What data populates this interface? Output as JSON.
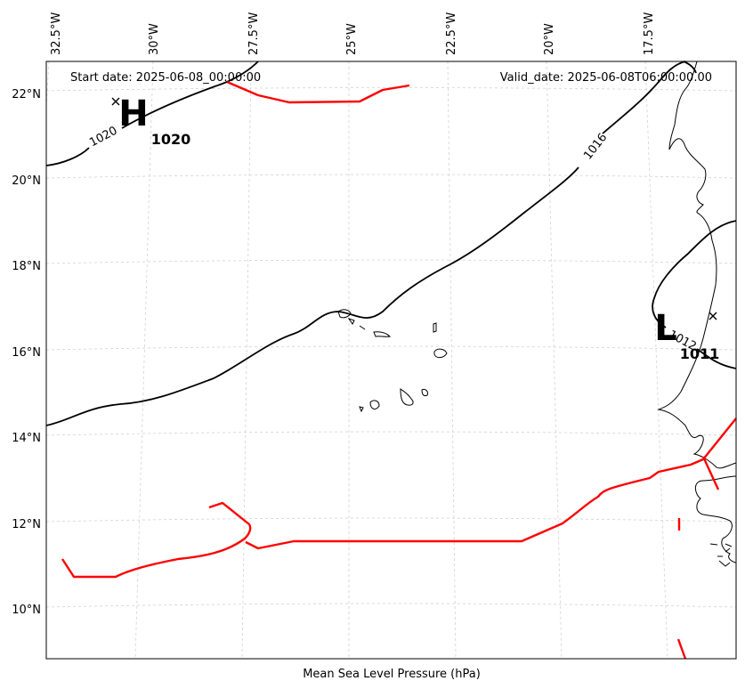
{
  "map": {
    "start_date": "Start date: 2025-06-08_00:00:00",
    "valid_date": "Valid_date: 2025-06-08T06:00:00.00",
    "xlabel": "Mean Sea Level Pressure (hPa)",
    "lon_ticks": [
      "32.5°W",
      "30°W",
      "27.5°W",
      "25°W",
      "22.5°W",
      "20°W",
      "17.5°W"
    ],
    "lat_ticks": [
      "22°N",
      "20°N",
      "18°N",
      "16°N",
      "14°N",
      "12°N",
      "10°N"
    ],
    "high": {
      "symbol": "H",
      "value": "1020"
    },
    "low": {
      "symbol": "L",
      "value": "1011"
    },
    "contour_labels": [
      "1020",
      "1016",
      "1012"
    ],
    "colors": {
      "isobar": "#000000",
      "front": "#ff0000",
      "grid": "#c8c8c8",
      "coast": "#000000"
    }
  }
}
